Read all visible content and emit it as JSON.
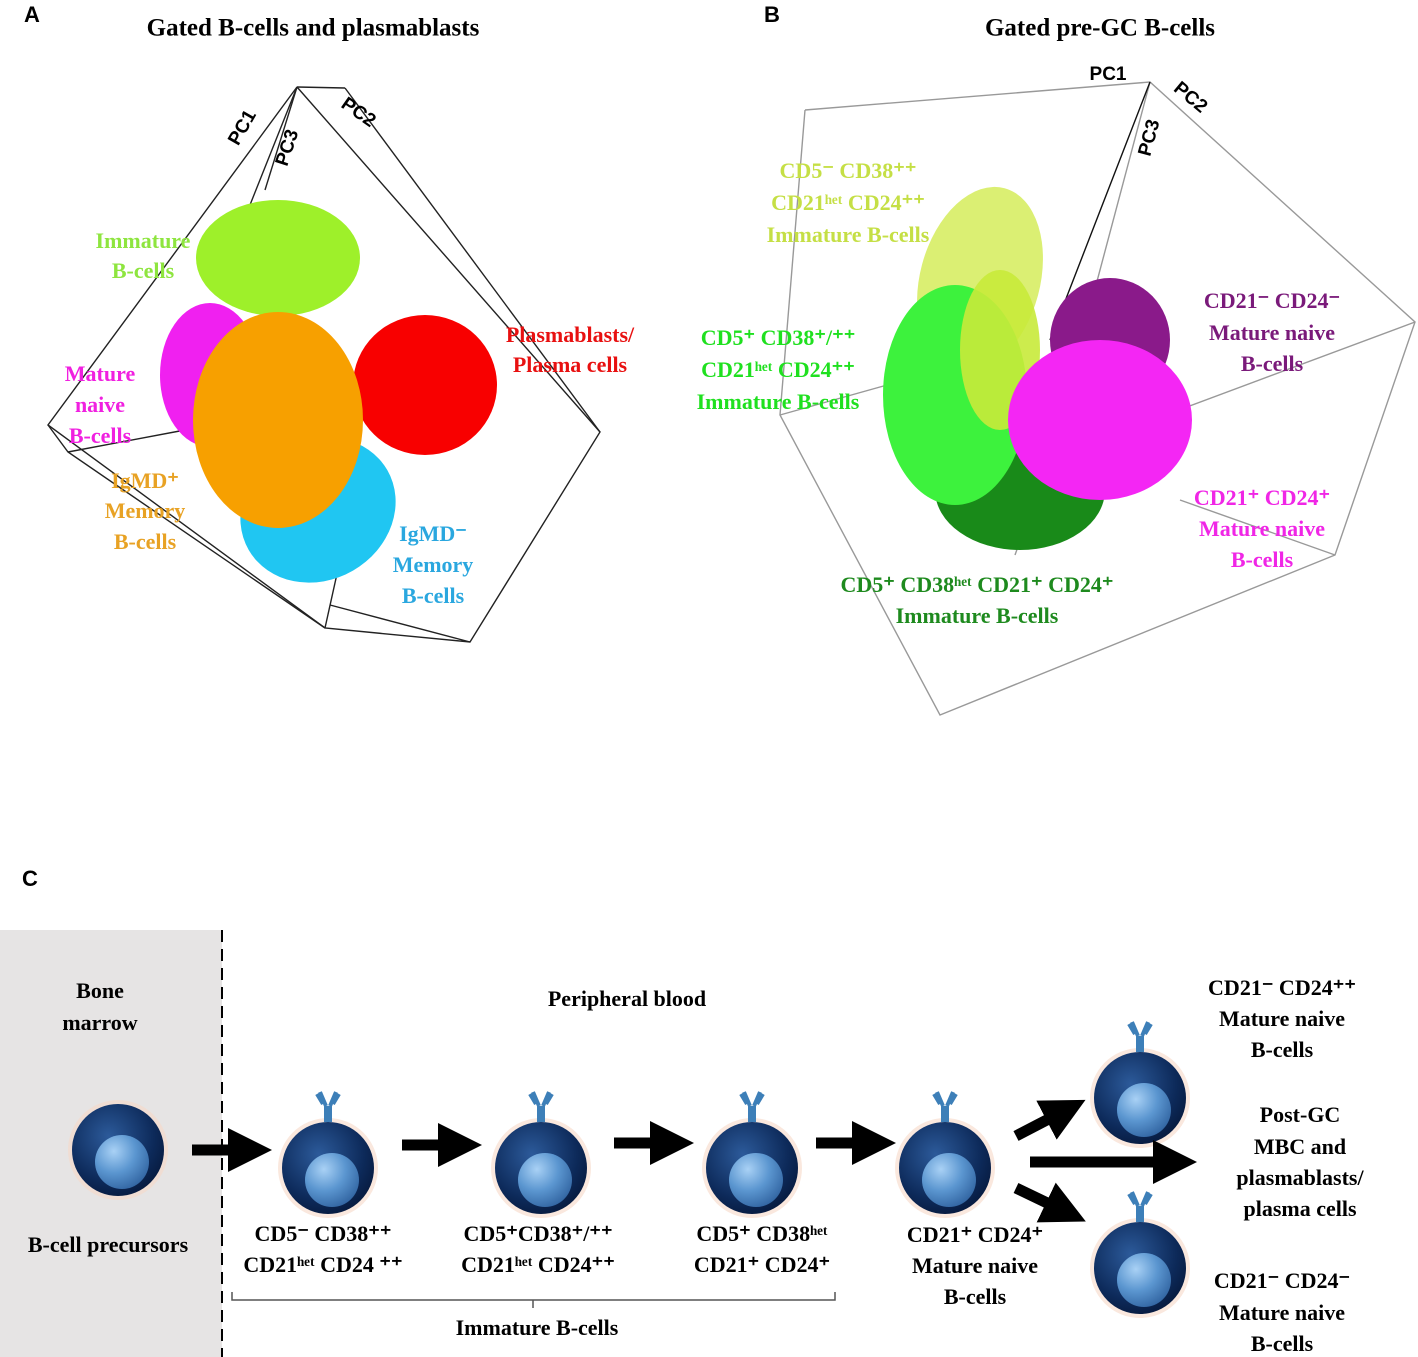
{
  "panel_a": {
    "letter": "A",
    "title": "Gated B-cells and plasmablasts",
    "axes": [
      "PC1",
      "PC3",
      "PC2"
    ],
    "labels": [
      [
        "Immature",
        "B-cells"
      ],
      [
        "Mature",
        "naive",
        "B-cells"
      ],
      [
        "IgMD⁺",
        "Memory",
        "B-cells"
      ],
      [
        "IgMD⁻",
        "Memory",
        "B-cells"
      ],
      [
        "Plasmablasts/",
        "Plasma cells"
      ]
    ]
  },
  "panel_b": {
    "letter": "B",
    "title": "Gated pre-GC B-cells",
    "axes": [
      "PC1",
      "PC2",
      "PC3"
    ],
    "labels": [
      [
        "CD5⁻ CD38⁺⁺",
        "CD21ʰᵉᵗ CD24⁺⁺",
        "Immature B-cells"
      ],
      [
        "CD5⁺ CD38⁺/⁺⁺",
        "CD21ʰᵉᵗ CD24⁺⁺",
        "Immature B-cells"
      ],
      [
        "CD21⁻ CD24⁻",
        "Mature naive",
        "B-cells"
      ],
      [
        "CD21⁺ CD24⁺",
        "Mature naive",
        "B-cells"
      ],
      [
        "CD5⁺ CD38ʰᵉᵗ CD21⁺  CD24⁺",
        "Immature B-cells"
      ]
    ]
  },
  "panel_c": {
    "letter": "C",
    "bone_marrow": [
      "Bone",
      "marrow"
    ],
    "precursors": "B-cell precursors",
    "peripheral": "Peripheral blood",
    "stages": [
      [
        "CD5⁻ CD38⁺⁺",
        "CD21ʰᵉᵗ CD24 ⁺⁺"
      ],
      [
        "CD5⁺CD38⁺/⁺⁺",
        "CD21ʰᵉᵗ CD24⁺⁺"
      ],
      [
        "CD5⁺ CD38ʰᵉᵗ",
        "CD21⁺ CD24⁺"
      ],
      [
        "CD21⁺ CD24⁺",
        "Mature naive",
        "B-cells"
      ]
    ],
    "immature_group": "Immature B-cells",
    "outcomes": [
      [
        "CD21⁻ CD24⁺⁺",
        "Mature naive",
        "B-cells"
      ],
      [
        "Post-GC",
        "MBC and",
        "plasmablasts/",
        "plasma cells"
      ],
      [
        "CD21⁻ CD24⁻",
        "Mature naive",
        "B-cells"
      ]
    ]
  }
}
